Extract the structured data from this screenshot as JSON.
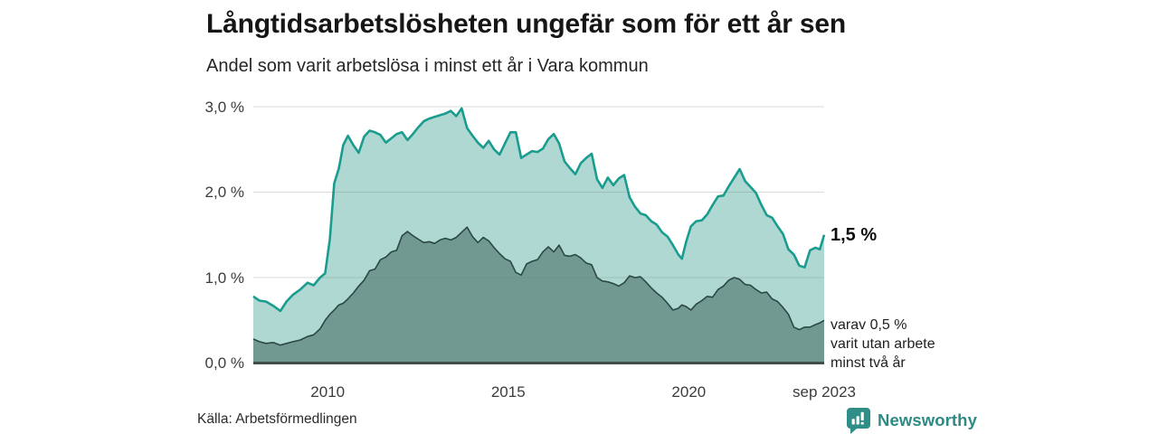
{
  "header": {
    "title": "Långtidsarbetslösheten ungefär som för ett år sen",
    "subtitle": "Andel som varit arbetslösa i minst ett år i Vara kommun"
  },
  "footer": {
    "source": "Källa: Arbetsförmedlingen",
    "brand": "Newsworthy",
    "brand_color": "#2d8a84"
  },
  "colors": {
    "total_line": "#1a9c8f",
    "total_fill": "#b0d8d2",
    "twoyear_line": "#2c4842",
    "twoyear_fill": "#719992",
    "baseline": "#404e4a",
    "gridline": "rgba(105,125,118,0.28)"
  },
  "chart_data": {
    "type": "area",
    "title": "Långtidsarbetslösheten ungefär som för ett år sen",
    "subtitle": "Andel som varit arbetslösa i minst ett år i Vara kommun",
    "x_unit": "decimal_year",
    "ylim": [
      0,
      3.0
    ],
    "grid": "horizontal",
    "legend_position": "end-of-line labels (right)",
    "y_ticks": [
      {
        "label": "3,0 %",
        "value": 3.0
      },
      {
        "label": "2,0 %",
        "value": 2.0
      },
      {
        "label": "1,0 %",
        "value": 1.0
      },
      {
        "label": "0,0 %",
        "value": 0.0
      }
    ],
    "x_ticks": [
      {
        "label": "2010",
        "x": 2010
      },
      {
        "label": "2015",
        "x": 2015
      },
      {
        "label": "2020",
        "x": 2020
      },
      {
        "label": "sep 2023",
        "x": 2023.75
      }
    ],
    "x": [
      2007.94,
      2008.11,
      2008.29,
      2008.49,
      2008.69,
      2008.86,
      2009.04,
      2009.24,
      2009.44,
      2009.61,
      2009.79,
      2009.93,
      2010.06,
      2010.18,
      2010.31,
      2010.43,
      2010.56,
      2010.71,
      2010.86,
      2011.01,
      2011.16,
      2011.31,
      2011.46,
      2011.61,
      2011.76,
      2011.91,
      2012.06,
      2012.21,
      2012.36,
      2012.51,
      2012.66,
      2012.81,
      2012.96,
      2013.11,
      2013.26,
      2013.41,
      2013.56,
      2013.71,
      2013.86,
      2014.01,
      2014.16,
      2014.31,
      2014.46,
      2014.61,
      2014.76,
      2014.91,
      2015.06,
      2015.21,
      2015.36,
      2015.51,
      2015.66,
      2015.81,
      2015.96,
      2016.11,
      2016.26,
      2016.41,
      2016.56,
      2016.71,
      2016.86,
      2017.01,
      2017.16,
      2017.31,
      2017.46,
      2017.61,
      2017.76,
      2017.91,
      2018.06,
      2018.21,
      2018.36,
      2018.51,
      2018.66,
      2018.81,
      2018.96,
      2019.11,
      2019.26,
      2019.41,
      2019.56,
      2019.71,
      2019.81,
      2019.93,
      2020.06,
      2020.21,
      2020.36,
      2020.51,
      2020.66,
      2020.81,
      2020.96,
      2021.11,
      2021.26,
      2021.41,
      2021.56,
      2021.71,
      2021.86,
      2022.01,
      2022.16,
      2022.31,
      2022.46,
      2022.61,
      2022.76,
      2022.91,
      2023.06,
      2023.21,
      2023.36,
      2023.51,
      2023.63,
      2023.75
    ],
    "series": [
      {
        "name": "Andel som varit arbetslösa i minst ett år",
        "end_label": "1,5 %",
        "end_value_pct": 1.5,
        "values": [
          0.78,
          0.73,
          0.72,
          0.67,
          0.61,
          0.72,
          0.8,
          0.86,
          0.94,
          0.91,
          1.0,
          1.05,
          1.45,
          2.1,
          2.28,
          2.55,
          2.66,
          2.55,
          2.46,
          2.65,
          2.72,
          2.7,
          2.67,
          2.58,
          2.63,
          2.68,
          2.7,
          2.61,
          2.68,
          2.76,
          2.83,
          2.86,
          2.88,
          2.9,
          2.92,
          2.95,
          2.89,
          2.98,
          2.75,
          2.66,
          2.58,
          2.52,
          2.6,
          2.5,
          2.44,
          2.57,
          2.7,
          2.7,
          2.4,
          2.44,
          2.48,
          2.47,
          2.51,
          2.62,
          2.68,
          2.57,
          2.36,
          2.28,
          2.21,
          2.34,
          2.4,
          2.45,
          2.15,
          2.05,
          2.17,
          2.08,
          2.16,
          2.2,
          1.94,
          1.83,
          1.75,
          1.73,
          1.66,
          1.62,
          1.53,
          1.48,
          1.38,
          1.27,
          1.22,
          1.42,
          1.6,
          1.66,
          1.67,
          1.74,
          1.85,
          1.95,
          1.96,
          2.07,
          2.17,
          2.27,
          2.13,
          2.06,
          1.99,
          1.85,
          1.73,
          1.7,
          1.6,
          1.51,
          1.33,
          1.27,
          1.14,
          1.12,
          1.32,
          1.35,
          1.33,
          1.5
        ]
      },
      {
        "name": "varav utan arbete minst två år",
        "end_label_lines": [
          "varav 0,5 %",
          "varit utan arbete",
          "minst två år"
        ],
        "end_value_pct": 0.5,
        "values": [
          0.28,
          0.25,
          0.23,
          0.24,
          0.21,
          0.23,
          0.25,
          0.27,
          0.31,
          0.33,
          0.4,
          0.5,
          0.57,
          0.62,
          0.68,
          0.7,
          0.75,
          0.82,
          0.9,
          0.97,
          1.08,
          1.1,
          1.21,
          1.24,
          1.3,
          1.32,
          1.49,
          1.54,
          1.49,
          1.45,
          1.41,
          1.42,
          1.4,
          1.44,
          1.46,
          1.44,
          1.47,
          1.53,
          1.59,
          1.48,
          1.41,
          1.47,
          1.43,
          1.35,
          1.28,
          1.22,
          1.19,
          1.06,
          1.03,
          1.16,
          1.19,
          1.21,
          1.3,
          1.36,
          1.3,
          1.38,
          1.26,
          1.25,
          1.27,
          1.23,
          1.17,
          1.15,
          1.0,
          0.96,
          0.95,
          0.93,
          0.9,
          0.94,
          1.02,
          1.0,
          1.01,
          0.95,
          0.88,
          0.82,
          0.77,
          0.7,
          0.62,
          0.64,
          0.68,
          0.66,
          0.62,
          0.69,
          0.73,
          0.78,
          0.77,
          0.86,
          0.9,
          0.97,
          1.0,
          0.98,
          0.92,
          0.91,
          0.86,
          0.82,
          0.83,
          0.75,
          0.72,
          0.65,
          0.57,
          0.42,
          0.39,
          0.42,
          0.42,
          0.45,
          0.47,
          0.5
        ]
      }
    ]
  }
}
